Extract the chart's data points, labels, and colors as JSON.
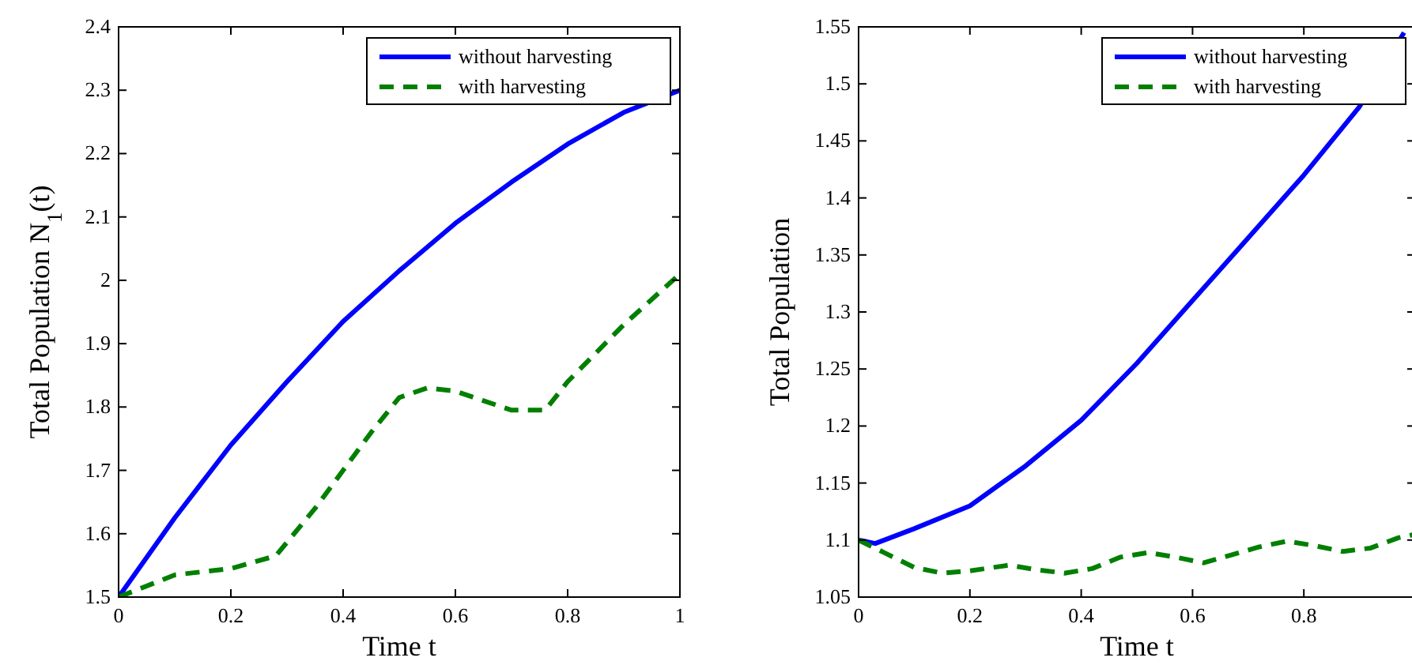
{
  "chart_data": [
    {
      "type": "line",
      "xlabel": "Time t",
      "ylabel": "Total Population N$_{1}$(t)",
      "xlim": [
        0,
        1
      ],
      "ylim": [
        1.5,
        2.4
      ],
      "xticks": [
        0,
        0.2,
        0.4,
        0.6,
        0.8,
        1
      ],
      "yticks": [
        1.5,
        1.6,
        1.7,
        1.8,
        1.9,
        2,
        2.1,
        2.2,
        2.3,
        2.4
      ],
      "legend": "top right",
      "grid": false,
      "series": [
        {
          "name": "without harvesting",
          "color": "#0000ff",
          "line_style": "solid",
          "x": [
            0,
            0.1,
            0.2,
            0.3,
            0.4,
            0.5,
            0.6,
            0.7,
            0.8,
            0.9,
            1
          ],
          "values": [
            1.5,
            1.625,
            1.74,
            1.84,
            1.935,
            2.015,
            2.09,
            2.155,
            2.215,
            2.265,
            2.3
          ]
        },
        {
          "name": "with harvesting",
          "color": "#007f00",
          "line_style": "dashed",
          "x": [
            0,
            0.1,
            0.2,
            0.28,
            0.35,
            0.4,
            0.45,
            0.5,
            0.55,
            0.6,
            0.65,
            0.7,
            0.76,
            0.8,
            0.85,
            0.9,
            0.95,
            1
          ],
          "values": [
            1.5,
            1.535,
            1.545,
            1.565,
            1.64,
            1.7,
            1.76,
            1.815,
            1.83,
            1.825,
            1.81,
            1.795,
            1.795,
            1.84,
            1.885,
            1.93,
            1.97,
            2.01
          ]
        }
      ]
    },
    {
      "type": "line",
      "xlabel": "Time t",
      "ylabel": "Total Population",
      "xlim": [
        0,
        1
      ],
      "ylim": [
        1.05,
        1.55
      ],
      "xticks": [
        0,
        0.2,
        0.4,
        0.6,
        0.8
      ],
      "yticks": [
        1.05,
        1.1,
        1.15,
        1.2,
        1.25,
        1.3,
        1.35,
        1.4,
        1.45,
        1.5,
        1.55
      ],
      "legend": "top right",
      "grid": false,
      "series": [
        {
          "name": "without harvesting",
          "color": "#0000ff",
          "line_style": "solid",
          "x": [
            0,
            0.03,
            0.1,
            0.2,
            0.3,
            0.4,
            0.5,
            0.6,
            0.7,
            0.8,
            0.9,
            0.98
          ],
          "values": [
            1.1,
            1.097,
            1.11,
            1.13,
            1.165,
            1.205,
            1.255,
            1.31,
            1.365,
            1.42,
            1.48,
            1.545
          ]
        },
        {
          "name": "with harvesting",
          "color": "#007f00",
          "line_style": "dashed",
          "x": [
            0,
            0.05,
            0.1,
            0.15,
            0.2,
            0.27,
            0.32,
            0.37,
            0.42,
            0.47,
            0.52,
            0.57,
            0.62,
            0.67,
            0.72,
            0.77,
            0.82,
            0.87,
            0.92,
            0.97,
            1
          ],
          "values": [
            1.1,
            1.088,
            1.076,
            1.071,
            1.073,
            1.078,
            1.074,
            1.071,
            1.075,
            1.085,
            1.089,
            1.085,
            1.08,
            1.087,
            1.094,
            1.099,
            1.095,
            1.09,
            1.093,
            1.102,
            1.105
          ]
        }
      ]
    }
  ]
}
